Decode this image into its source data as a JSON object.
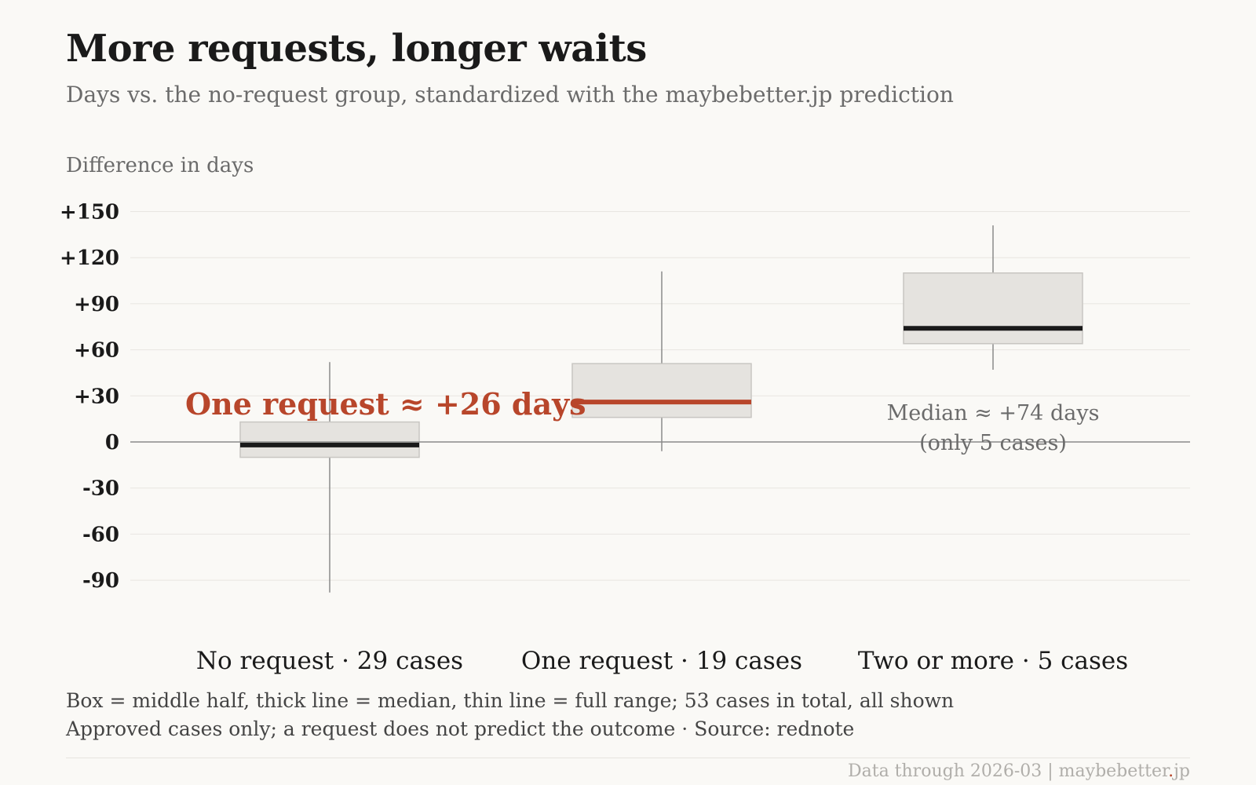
{
  "title": "More requests, longer waits",
  "subtitle": "Days vs. the no-request group, standardized with the maybebetter.jp prediction",
  "footnotes": [
    "Box = middle half, thick line = median, thin line = full range; 53 cases in total, all shown",
    "Approved cases only; a request does not predict the outcome · Source: rednote"
  ],
  "credit": {
    "text": "Data through 2026-03 | maybebetter",
    "dot": ".",
    "suffix": "jp"
  },
  "colors": {
    "accent": "#b8462b",
    "box_fill": "#e5e3df",
    "box_stroke": "#c8c6c2",
    "median": "#1a1a1a",
    "whisker": "#8a8a8a",
    "grid": "#e8e6e1",
    "zero_line": "#8a8a8a",
    "annotation_gray": "#6b6b6b"
  },
  "chart_data": {
    "type": "box",
    "ylabel": "Difference in days",
    "ylim": [
      -100,
      150
    ],
    "yticks": [
      150,
      120,
      90,
      60,
      30,
      0,
      -30,
      -60,
      -90
    ],
    "ytick_labels": [
      "+150",
      "+120",
      "+90",
      "+60",
      "+30",
      "0",
      "-30",
      "-60",
      "-90"
    ],
    "grid": true,
    "categories": [
      "No request · 29 cases",
      "One request · 19 cases",
      "Two or more · 5 cases"
    ],
    "boxes": [
      {
        "min": -98,
        "q1": -10,
        "median": -2,
        "q3": 13,
        "max": 52,
        "highlight": false
      },
      {
        "min": -6,
        "q1": 16,
        "median": 26,
        "q3": 51,
        "max": 111,
        "highlight": true
      },
      {
        "min": 47,
        "q1": 64,
        "median": 74,
        "q3": 110,
        "max": 141,
        "highlight": false
      }
    ],
    "annotations": [
      {
        "text": "One request ≈ +26 days",
        "style": "accent"
      },
      {
        "text": "Median ≈ +74 days",
        "style": "gray"
      },
      {
        "text": "(only 5 cases)",
        "style": "gray"
      }
    ]
  }
}
